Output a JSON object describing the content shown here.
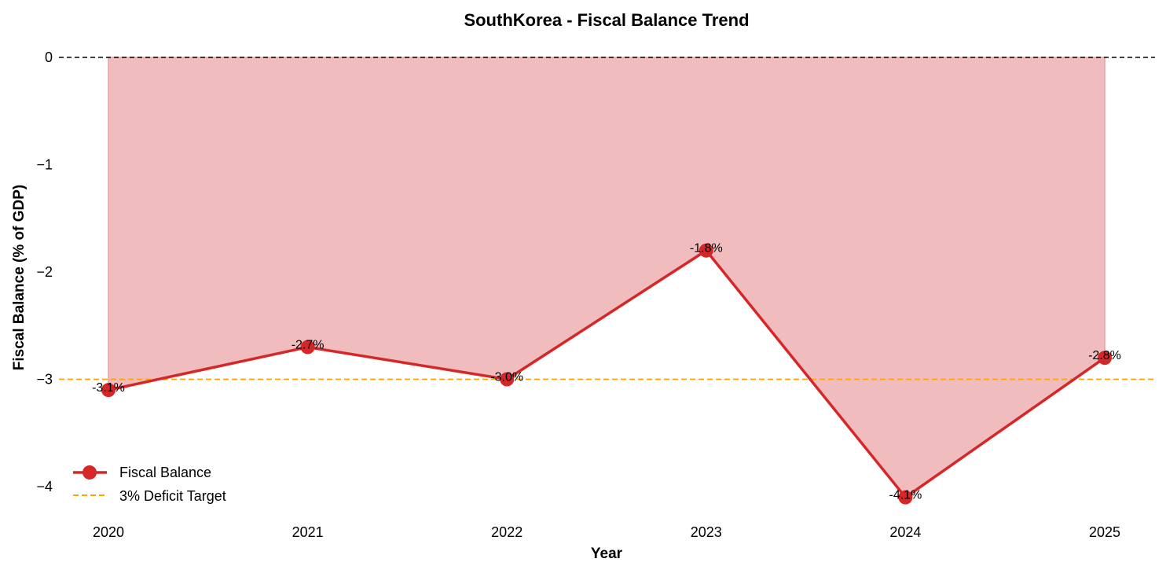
{
  "chart_data": {
    "type": "line",
    "title": "SouthKorea - Fiscal Balance Trend",
    "xlabel": "Year",
    "ylabel": "Fiscal Balance (% of GDP)",
    "categories": [
      "2020",
      "2021",
      "2022",
      "2023",
      "2024",
      "2025"
    ],
    "series": [
      {
        "name": "Fiscal Balance",
        "values": [
          -3.1,
          -2.7,
          -3.0,
          -1.8,
          -4.1,
          -2.8
        ],
        "color": "#d62728",
        "fill_to_zero": true,
        "fill_color": "#f0bcbe"
      }
    ],
    "data_labels": [
      "-3.1%",
      "-2.7%",
      "-3.0%",
      "-1.8%",
      "-4.1%",
      "-2.8%"
    ],
    "reference_lines": [
      {
        "name": "zero",
        "y": 0,
        "color": "#000000",
        "style": "dashed"
      },
      {
        "name": "3% Deficit Target",
        "y": -3,
        "color": "#ffa500",
        "style": "dashed"
      }
    ],
    "yticks": [
      "0",
      "−1",
      "−2",
      "−3",
      "−4"
    ],
    "ytick_values": [
      0,
      -1,
      -2,
      -3,
      -4
    ],
    "ylim": [
      -4.3,
      0.2
    ],
    "grid": false,
    "legend": {
      "position": "lower left",
      "entries": [
        "Fiscal Balance",
        "3% Deficit Target"
      ]
    }
  }
}
